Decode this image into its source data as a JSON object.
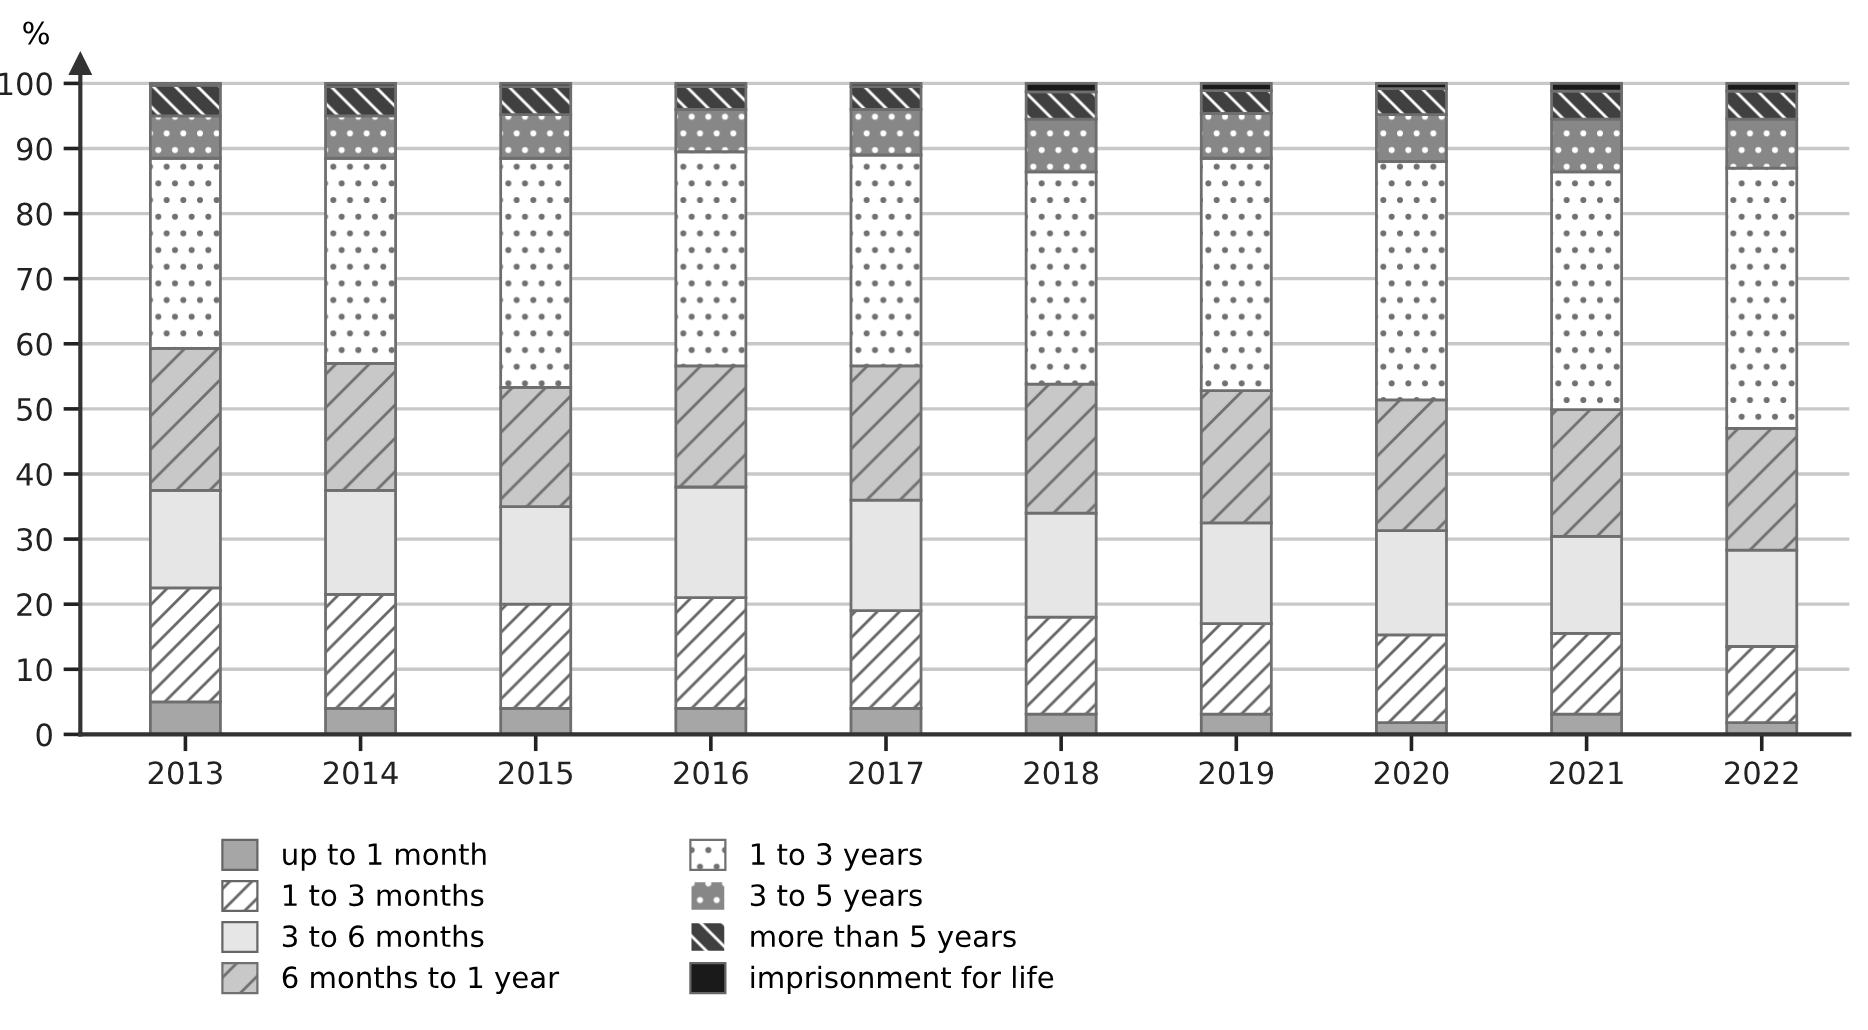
{
  "chart_data": {
    "type": "bar",
    "stacked": true,
    "ylabel": "%",
    "categories": [
      "2013",
      "2014",
      "2015",
      "2016",
      "2017",
      "2018",
      "2019",
      "2020",
      "2021",
      "2022"
    ],
    "ylim": [
      0,
      103
    ],
    "yticks": [
      0,
      10,
      20,
      30,
      40,
      50,
      60,
      70,
      80,
      90,
      100
    ],
    "grid": "y",
    "legend": "bottom",
    "series": [
      {
        "name": "up to 1 month",
        "color": "#a6a6a6",
        "values": [
          5,
          4,
          4,
          4,
          4,
          3.1,
          3.1,
          1.8,
          3.1,
          1.8
        ]
      },
      {
        "name": "1 to 3 months",
        "color": "#ffffff",
        "values": [
          17.5,
          17.5,
          16,
          17,
          15,
          14.9,
          13.9,
          13.5,
          12.4,
          11.7
        ]
      },
      {
        "name": "3 to 6 months",
        "color": "#e6e6e6",
        "values": [
          15,
          16,
          15,
          17,
          17,
          16,
          15.5,
          16,
          14.9,
          14.8
        ]
      },
      {
        "name": "6 months to 1 year",
        "color": "#c8c8c8",
        "values": [
          21.8,
          19.5,
          18.3,
          18.6,
          20.6,
          19.8,
          20.3,
          20.1,
          19.5,
          18.7
        ]
      },
      {
        "name": "1 to 3 years",
        "color": "#ffffff",
        "values": [
          29.2,
          31.5,
          35.2,
          32.9,
          32.4,
          32.6,
          35.7,
          36.6,
          36.5,
          40
        ]
      },
      {
        "name": "3 to 5 years",
        "color": "#878787",
        "values": [
          6.5,
          6.5,
          6.7,
          6.5,
          7,
          8.1,
          6.9,
          7.2,
          8.1,
          7.5
        ]
      },
      {
        "name": "more than 5 years",
        "color": "#404040",
        "values": [
          4.7,
          4.5,
          4.3,
          3.5,
          3.5,
          4.2,
          3.5,
          4,
          4.3,
          4.3
        ]
      },
      {
        "name": "imprisonment for life",
        "color": "#1a1a1a",
        "values": [
          0.3,
          0.5,
          0.5,
          0.5,
          0.5,
          1.3,
          1.1,
          0.8,
          1.2,
          1.2
        ]
      }
    ]
  }
}
